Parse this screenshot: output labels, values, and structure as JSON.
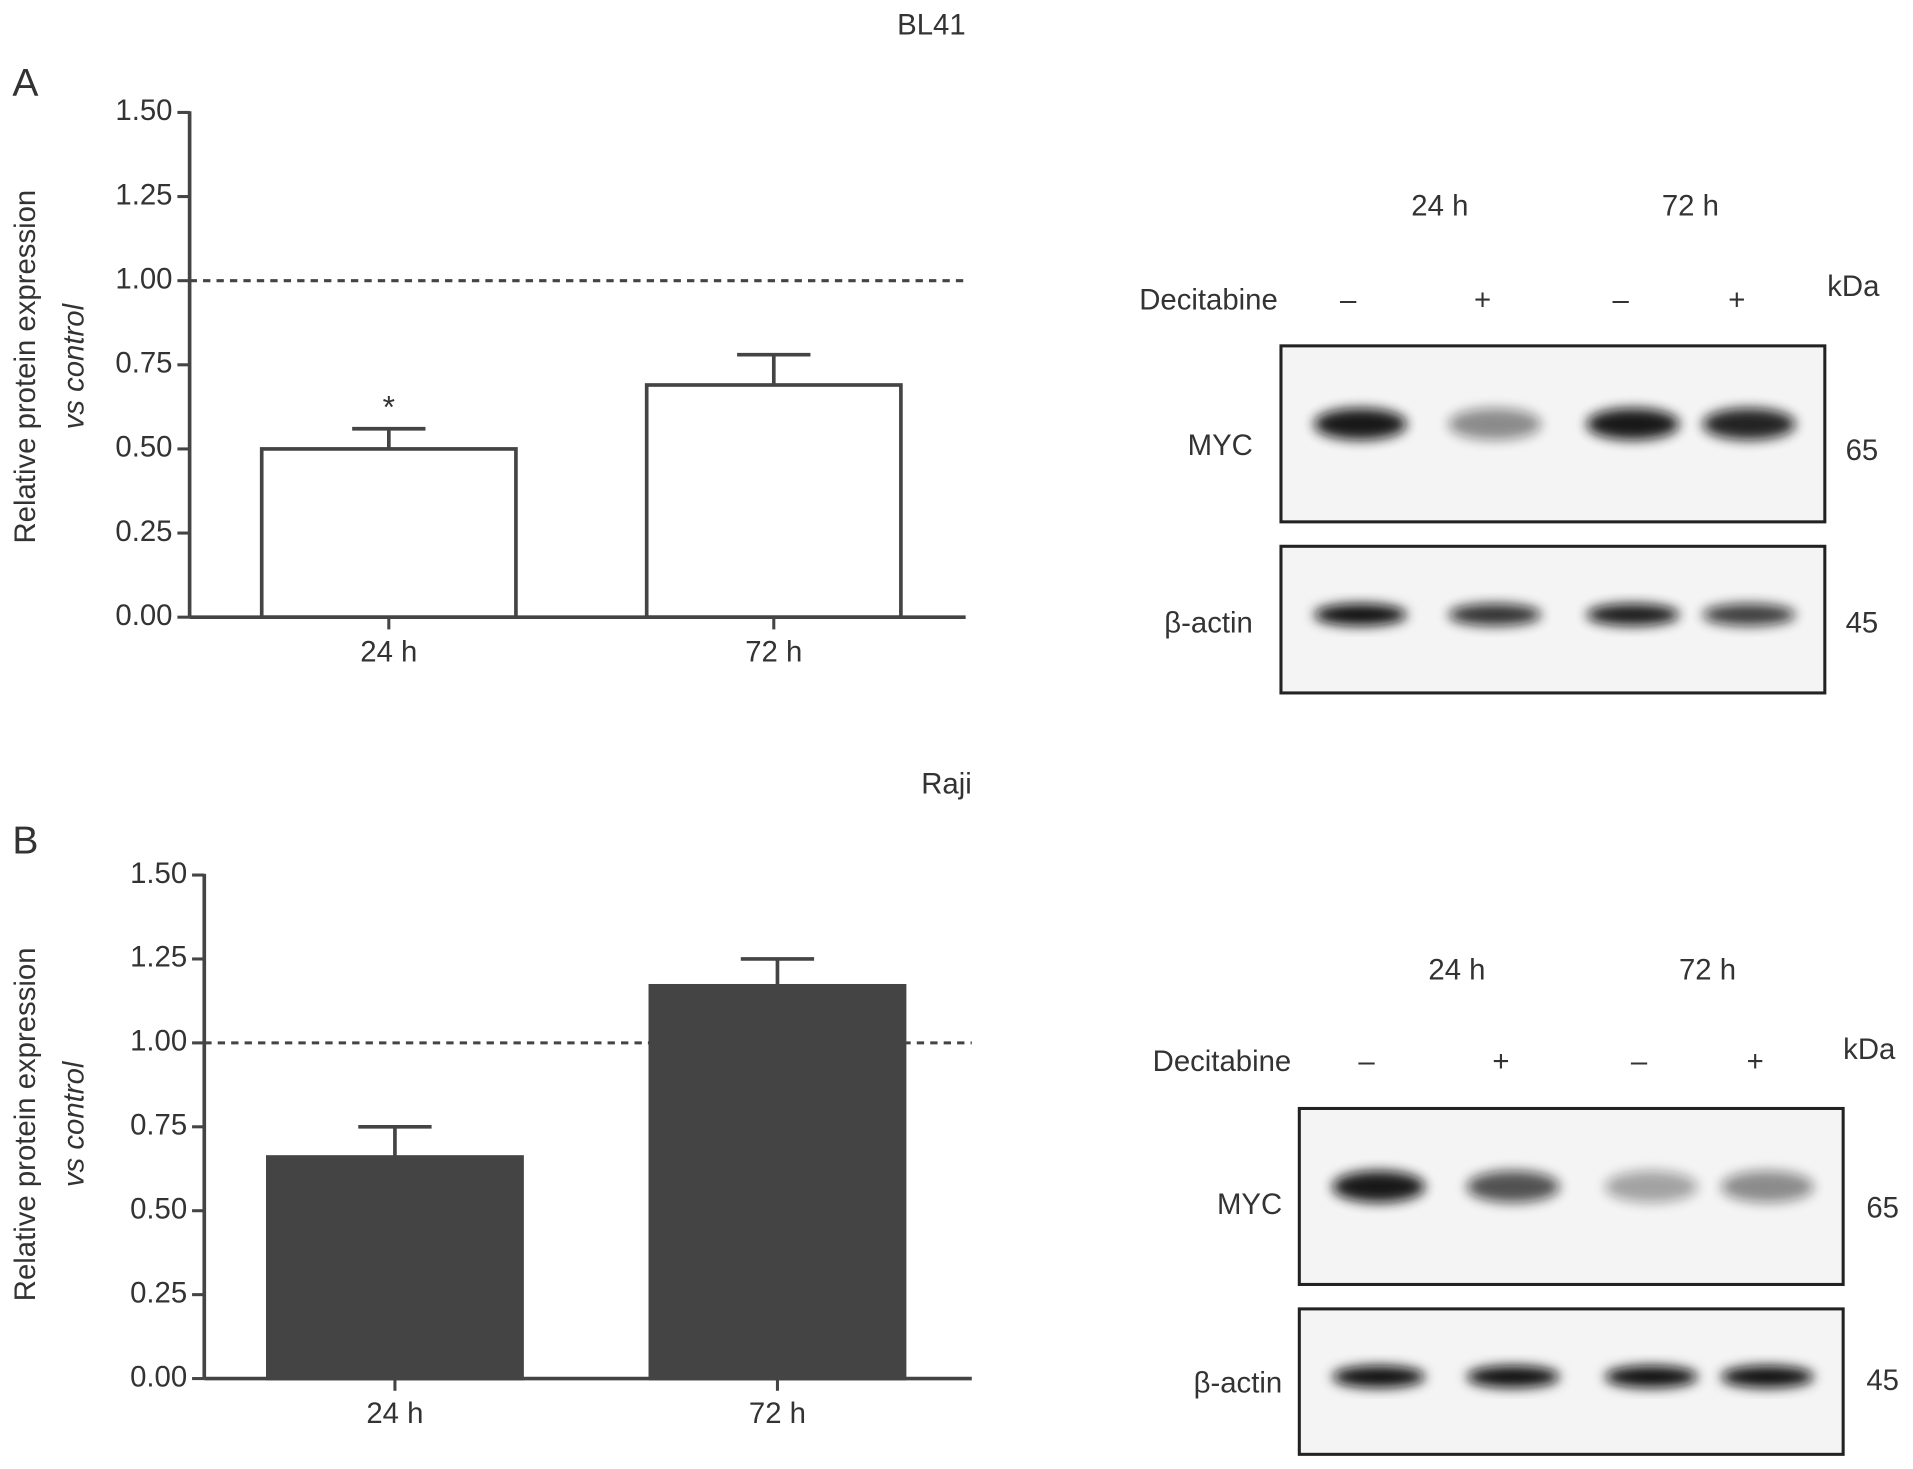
{
  "panel_labels": [
    "A",
    "B"
  ],
  "chart_data": [
    {
      "type": "bar",
      "title": "BL41",
      "ylabel": [
        "Relative protein expression",
        "vs control"
      ],
      "categories": [
        "24 h",
        "72 h"
      ],
      "series": [
        {
          "color": "#ffffff",
          "values": [
            0.5,
            0.69
          ],
          "errors": [
            0.06,
            0.09
          ]
        }
      ],
      "reference_line": 1.0,
      "annotations": [
        {
          "x": "24 h",
          "text": "*"
        }
      ],
      "ylim": [
        0,
        1.5
      ],
      "yticks": [
        {
          "value": 0,
          "label": "0.00"
        },
        {
          "value": 0.25,
          "label": "0.25"
        },
        {
          "value": 0.5,
          "label": "0.50"
        },
        {
          "value": 0.75,
          "label": "0.75"
        },
        {
          "value": 1,
          "label": "1.00"
        },
        {
          "value": 1.25,
          "label": "1.25"
        },
        {
          "value": 1.5,
          "label": "1.50"
        }
      ]
    },
    {
      "type": "bar",
      "title": "Raji",
      "ylabel": [
        "Relative protein expression",
        "vs control"
      ],
      "categories": [
        "24 h",
        "72 h"
      ],
      "series": [
        {
          "color": "#444444",
          "values": [
            0.66,
            1.17
          ],
          "errors": [
            0.09,
            0.08
          ]
        }
      ],
      "reference_line": 1.0,
      "ylim": [
        0,
        1.5
      ],
      "yticks": [
        {
          "value": 0,
          "label": "0.00"
        },
        {
          "value": 0.25,
          "label": "0.25"
        },
        {
          "value": 0.5,
          "label": "0.50"
        },
        {
          "value": 0.75,
          "label": "0.75"
        },
        {
          "value": 1,
          "label": "1.00"
        },
        {
          "value": 1.25,
          "label": "1.25"
        },
        {
          "value": 1.5,
          "label": "1.50"
        }
      ]
    }
  ],
  "blots": [
    {
      "columns": [
        "24 h",
        "72 h"
      ],
      "treatment_label": "Decitabine",
      "treatment_signs": [
        "–",
        "+",
        "–",
        "+"
      ],
      "unit_label": "kDa",
      "rows": [
        {
          "label": "MYC",
          "kda": 65
        },
        {
          "label": "β-actin",
          "kda": 45
        }
      ]
    },
    {
      "columns": [
        "24 h",
        "72 h"
      ],
      "treatment_label": "Decitabine",
      "treatment_signs": [
        "–",
        "+",
        "–",
        "+"
      ],
      "unit_label": "kDa",
      "rows": [
        {
          "label": "MYC",
          "kda": 65
        },
        {
          "label": "β-actin",
          "kda": 45
        }
      ]
    }
  ]
}
